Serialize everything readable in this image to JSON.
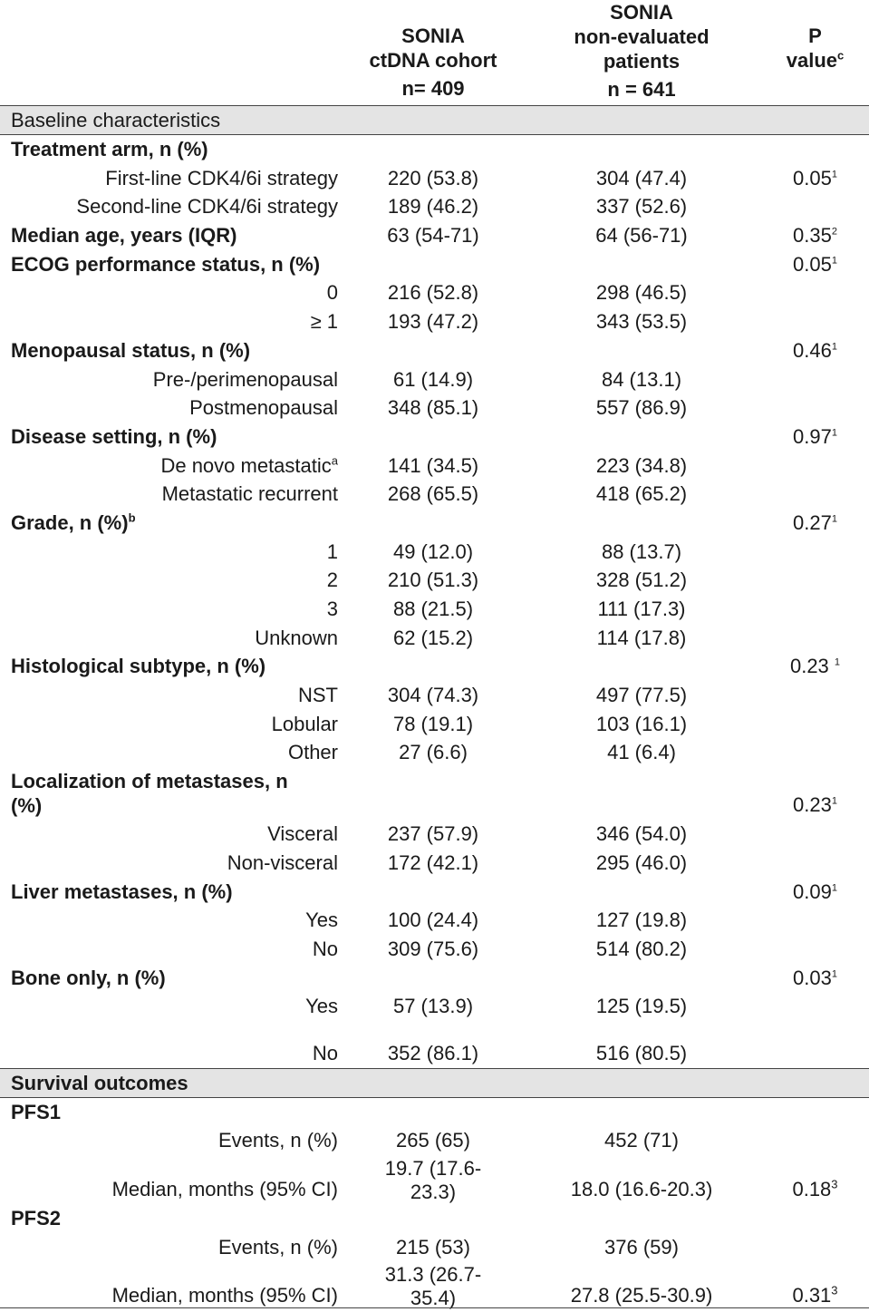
{
  "header": {
    "col1": {
      "line1": "SONIA",
      "line2": "ctDNA cohort",
      "n": "n= 409"
    },
    "col2": {
      "line1": "SONIA",
      "line2": "non-evaluated",
      "line3": "patients",
      "n": "n = 641"
    },
    "col3": {
      "line1": "P",
      "line2": "value",
      "sup": "c"
    }
  },
  "sections": {
    "baseline": "Baseline characteristics",
    "survival": "Survival outcomes"
  },
  "baseline_rows": [
    {
      "cat": "Treatment arm, n (%)"
    },
    {
      "sub": "First-line CDK4/6i strategy",
      "c1": "220 (53.8)",
      "c2": "304 (47.4)",
      "p": "0.05",
      "psup": "1"
    },
    {
      "sub": "Second-line CDK4/6i strategy",
      "c1": "189 (46.2)",
      "c2": "337 (52.6)"
    },
    {
      "cat": "Median age, years  (IQR)",
      "c1": "63 (54-71)",
      "c2": "64 (56-71)",
      "p": "0.35",
      "psup": "2"
    },
    {
      "cat": "ECOG performance status, n (%)",
      "p": "0.05",
      "psup": "1"
    },
    {
      "sub": "0",
      "c1": "216 (52.8)",
      "c2": "298 (46.5)"
    },
    {
      "sub": "≥ 1",
      "c1": "193 (47.2)",
      "c2": "343 (53.5)"
    },
    {
      "cat": "Menopausal status, n (%)",
      "p": "0.46",
      "psup": "1"
    },
    {
      "sub": "Pre-/perimenopausal",
      "c1": "61 (14.9)",
      "c2": "84 (13.1)"
    },
    {
      "sub": "Postmenopausal",
      "c1": "348 (85.1)",
      "c2": "557 (86.9)"
    },
    {
      "cat": "Disease setting, n (%)",
      "p": "0.97",
      "psup": "1"
    },
    {
      "sub": "De novo metastatic",
      "subsup": "a",
      "c1": "141 (34.5)",
      "c2": "223 (34.8)"
    },
    {
      "sub": "Metastatic recurrent",
      "c1": "268 (65.5)",
      "c2": "418 (65.2)"
    },
    {
      "cat": "Grade, n (%)",
      "catsup": "b",
      "p": "0.27",
      "psup": "1"
    },
    {
      "sub": "1",
      "c1": "49 (12.0)",
      "c2": "88 (13.7)"
    },
    {
      "sub": "2",
      "c1": "210 (51.3)",
      "c2": "328 (51.2)"
    },
    {
      "sub": "3",
      "c1": "88 (21.5)",
      "c2": "111 (17.3)"
    },
    {
      "sub": "Unknown",
      "c1": "62 (15.2)",
      "c2": "114 (17.8)"
    },
    {
      "cat": "Histological subtype, n (%)",
      "p": "0.23 ",
      "psup": "1"
    },
    {
      "sub": "NST",
      "c1": "304 (74.3)",
      "c2": "497 (77.5)"
    },
    {
      "sub": "Lobular",
      "c1": "78 (19.1)",
      "c2": "103 (16.1)"
    },
    {
      "sub": "Other",
      "c1": "27 (6.6)",
      "c2": "41 (6.4)"
    }
  ],
  "localization": {
    "cat_line1": "Localization of metastases, n",
    "cat_line2": "(%)",
    "p": "0.23",
    "psup": "1"
  },
  "baseline_rows_2": [
    {
      "sub": "Visceral",
      "c1": "237 (57.9)",
      "c2": "346 (54.0)"
    },
    {
      "sub": "Non-visceral",
      "c1": "172 (42.1)",
      "c2": "295 (46.0)"
    },
    {
      "cat": "Liver metastases, n (%)",
      "p": "0.09",
      "psup": "1"
    },
    {
      "sub": "Yes",
      "c1": "100 (24.4)",
      "c2": "127 (19.8)"
    },
    {
      "sub": "No",
      "c1": "309 (75.6)",
      "c2": "514 (80.2)"
    },
    {
      "cat": "Bone only, n (%)",
      "p": "0.03",
      "psup": "1"
    },
    {
      "sub": "Yes",
      "c1": "57 (13.9)",
      "c2": "125 (19.5)"
    }
  ],
  "bone_no": {
    "sub": "No",
    "c1": "352 (86.1)",
    "c2": "516 (80.5)"
  },
  "survival": {
    "pfs1": {
      "cat": "PFS1",
      "events_label": "Events, n (%)",
      "events_c1": "265 (65)",
      "events_c2": "452 (71)",
      "median_label": "Median, months (95% CI)",
      "median_c1_line1": "19.7 (17.6-",
      "median_c1_line2": "23.3)",
      "median_c2": "18.0 (16.6-20.3)",
      "p": "0.18",
      "psup": "3"
    },
    "pfs2": {
      "cat": "PFS2",
      "events_label": "Events, n (%)",
      "events_c1": "215 (53)",
      "events_c2": "376 (59)",
      "median_label": "Median, months (95% CI)",
      "median_c1_line1": "31.3 (26.7-",
      "median_c1_line2": "35.4)",
      "median_c2": "27.8 (25.5-30.9)",
      "p": "0.31",
      "psup": "3"
    }
  }
}
